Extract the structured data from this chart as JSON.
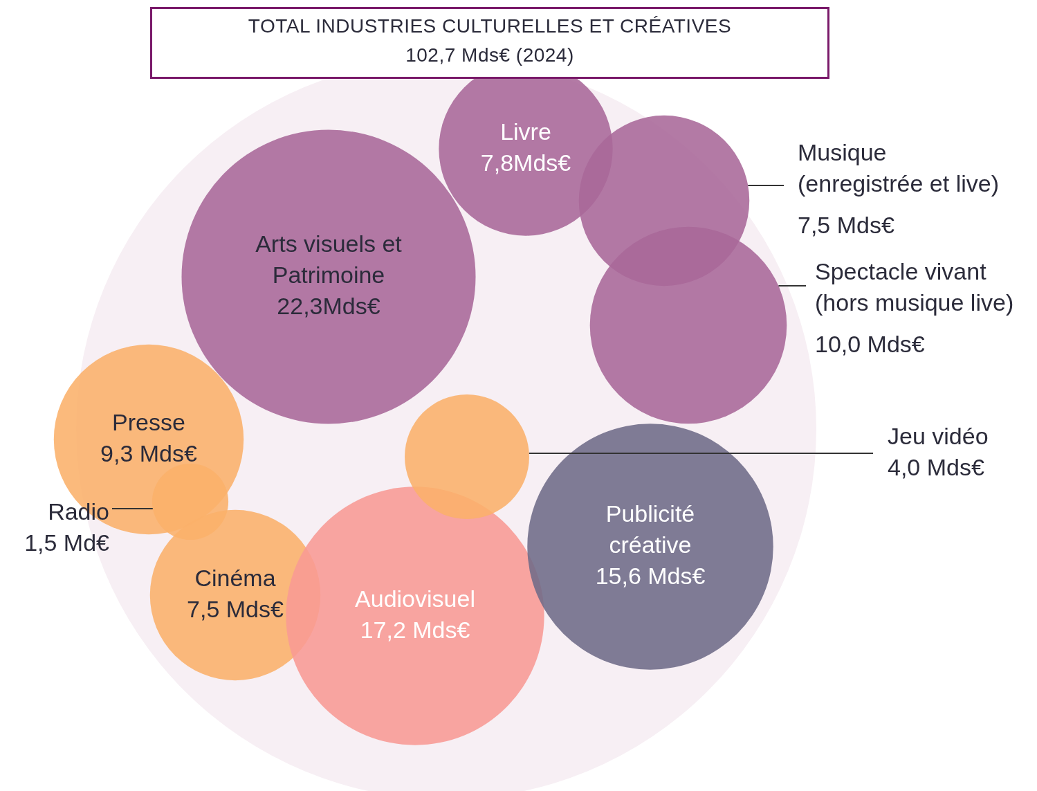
{
  "chart_data": {
    "type": "other",
    "title": "TOTAL INDUSTRIES CULTURELLES ET CRÉATIVES",
    "subtitle": "102,7 Mds€ (2024)",
    "categories": [
      "Arts visuels et Patrimoine",
      "Livre",
      "Musique (enregistrée et live)",
      "Spectacle vivant (hors musique live)",
      "Presse",
      "Radio",
      "Cinéma",
      "Audiovisuel",
      "Publicité créative",
      "Jeu vidéo"
    ],
    "values": [
      22.3,
      7.8,
      7.5,
      10.0,
      9.3,
      1.5,
      7.5,
      17.2,
      15.6,
      4.0
    ],
    "value_labels": [
      "22,3Mds€",
      "7,8Mds€",
      "7,5 Mds€",
      "10,0 Mds€",
      "9,3 Mds€",
      "1,5 Md€",
      "7,5 Mds€",
      "17,2 Mds€",
      "15,6 Mds€",
      "4,0 Mds€"
    ],
    "colors": [
      "#a86898",
      "#a86898",
      "#a86898",
      "#a86898",
      "#fbb06a",
      "#fbb06a",
      "#fbb06a",
      "#f89a94",
      "#6e6b87",
      "#fbb06a"
    ]
  }
}
